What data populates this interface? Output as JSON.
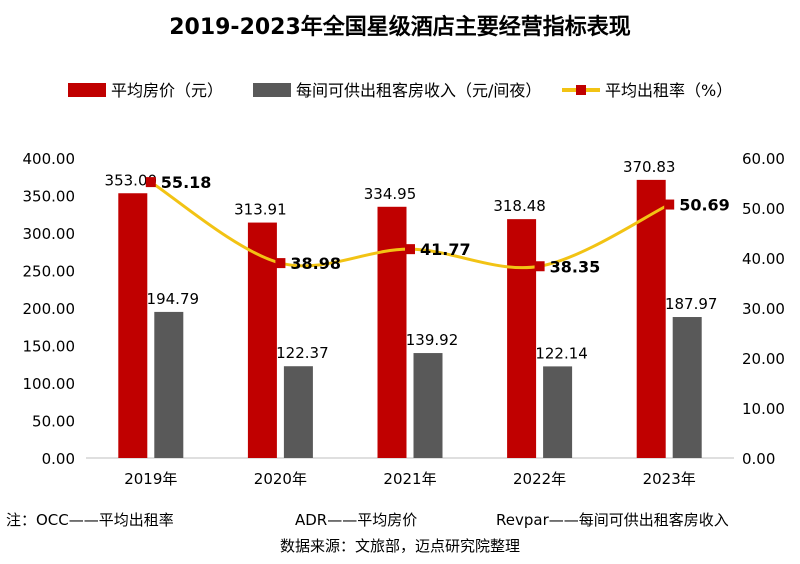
{
  "chart_data": {
    "type": "bar+line",
    "title": "2019-2023年全国星级酒店主要经营指标表现",
    "categories": [
      "2019年",
      "2020年",
      "2021年",
      "2022年",
      "2023年"
    ],
    "series": [
      {
        "name": "平均房价（元）",
        "type": "bar",
        "axis": "left",
        "color": "#C00000",
        "values": [
          353.0,
          313.91,
          334.95,
          318.48,
          370.83
        ],
        "labels": [
          "353.00",
          "313.91",
          "334.95",
          "318.48",
          "370.83"
        ]
      },
      {
        "name": "每间可供出租客房收入（元/间夜）",
        "type": "bar",
        "axis": "left",
        "color": "#595959",
        "values": [
          194.79,
          122.37,
          139.92,
          122.14,
          187.97
        ],
        "labels": [
          "194.79",
          "122.37",
          "139.92",
          "122.14",
          "187.97"
        ]
      },
      {
        "name": "平均出租率（%）",
        "type": "line",
        "axis": "right",
        "color": "#F2C314",
        "marker_color": "#C00000",
        "smooth": true,
        "values": [
          55.18,
          38.98,
          41.77,
          38.35,
          50.69
        ],
        "labels": [
          "55.18",
          "38.98",
          "41.77",
          "38.35",
          "50.69"
        ]
      }
    ],
    "y_left": {
      "range": [
        0,
        400
      ],
      "ticks": [
        "0.00",
        "50.00",
        "100.00",
        "150.00",
        "200.00",
        "250.00",
        "300.00",
        "350.00",
        "400.00"
      ]
    },
    "y_right": {
      "range": [
        0,
        60
      ],
      "ticks": [
        "0.00",
        "10.00",
        "20.00",
        "30.00",
        "40.00",
        "50.00",
        "60.00"
      ]
    },
    "grid": false,
    "legend_position": "top"
  },
  "notes": {
    "occ": "注：OCC——平均出租率",
    "adr": "ADR——平均房价",
    "revpar": "Revpar——每间可供出租客房收入",
    "source": "数据来源：文旅部，迈点研究院整理"
  },
  "watermark": "迈点研究院"
}
